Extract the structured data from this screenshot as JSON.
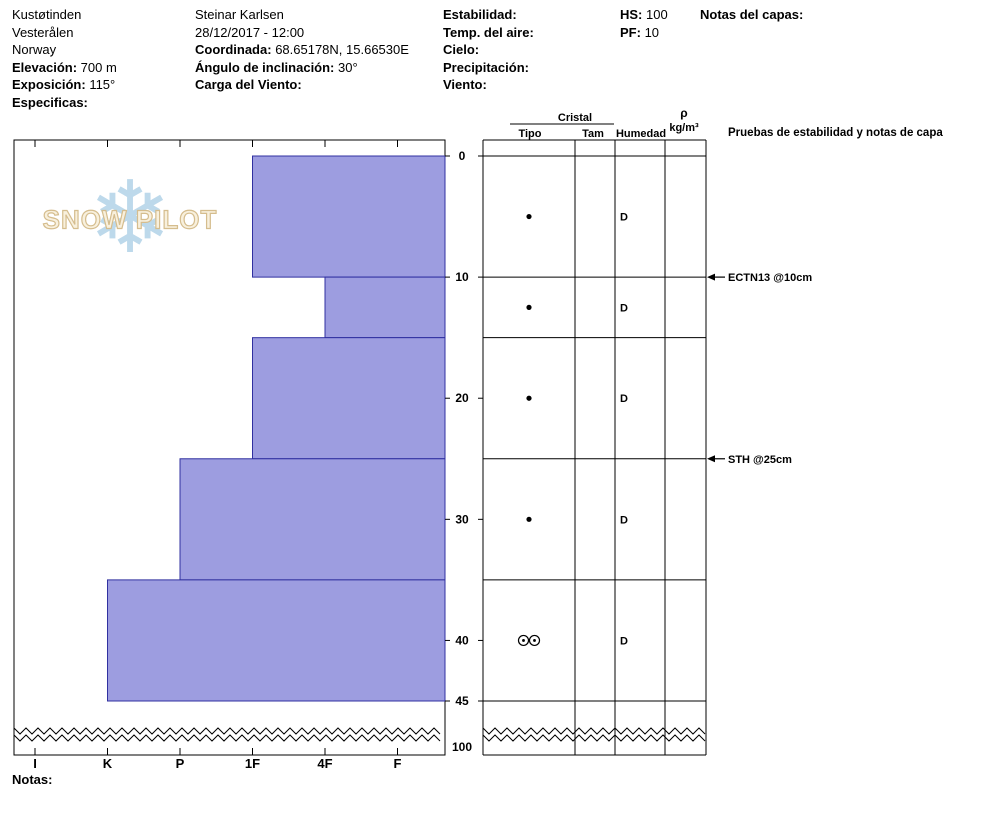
{
  "header": {
    "col1": {
      "site": "Kustøtinden",
      "region": "Vesterålen",
      "country": "Norway",
      "elevation_label": "Elevación:",
      "elevation_value": "700 m",
      "aspect_label": "Exposición:",
      "aspect_value": "115°",
      "specifics_label": "Especificas:"
    },
    "col2": {
      "observer": "Steinar Karlsen",
      "datetime": "28/12/2017 - 12:00",
      "coordinates_label": "Coordinada:",
      "coordinates_value": "68.65178N, 15.66530E",
      "slope_angle_label": "Ángulo de inclinación:",
      "slope_angle_value": "30°",
      "wind_loading_label": "Carga del Viento:"
    },
    "col3": {
      "stability_label": "Estabilidad:",
      "air_temp_label": "Temp. del aire:",
      "sky_label": "Cielo:",
      "precipitation_label": "Precipitación:",
      "wind_label": "Viento:"
    },
    "col4": {
      "hs_label": "HS:",
      "hs_value": "100",
      "pf_label": "PF:",
      "pf_value": "10"
    },
    "col5": {
      "layer_notes_label": "Notas del capas:"
    }
  },
  "table": {
    "header_cristal": "Cristal",
    "header_tipo": "Tipo",
    "header_tam": "Tam",
    "header_humedad": "Humedad",
    "header_rho": "ρ",
    "header_rho_units": "kg/m³",
    "header_tests": "Pruebas de estabilidad y notas de capa"
  },
  "chart_data": {
    "type": "bar",
    "orientation": "horizontal-hardness-profile",
    "title": "",
    "hardness_axis": [
      "I",
      "K",
      "P",
      "1F",
      "4F",
      "F"
    ],
    "depth_ticks": [
      "0",
      "10",
      "20",
      "30",
      "40",
      "45"
    ],
    "depth_break_label": "100",
    "layers": [
      {
        "top_cm": 0,
        "bottom_cm": 10,
        "hardness": "1F",
        "grain_symbol": "dot",
        "moisture": "D"
      },
      {
        "top_cm": 10,
        "bottom_cm": 15,
        "hardness": "4F",
        "grain_symbol": "dot",
        "moisture": "D"
      },
      {
        "top_cm": 15,
        "bottom_cm": 25,
        "hardness": "1F",
        "grain_symbol": "dot",
        "moisture": "D"
      },
      {
        "top_cm": 25,
        "bottom_cm": 35,
        "hardness": "P",
        "grain_symbol": "dot",
        "moisture": "D"
      },
      {
        "top_cm": 35,
        "bottom_cm": 45,
        "hardness": "K",
        "grain_symbol": "double-circle-dot",
        "moisture": "D"
      }
    ],
    "stability_tests": [
      {
        "label": "ECTN13 @10cm",
        "depth_cm": 10
      },
      {
        "label": "STH @25cm",
        "depth_cm": 25
      }
    ],
    "colors": {
      "bar_fill": "#9d9de0",
      "bar_stroke": "#3030a0",
      "grid": "#000000"
    }
  },
  "watermark": {
    "text": "SNOW PILOT"
  },
  "footer": {
    "notes_label": "Notas:"
  }
}
